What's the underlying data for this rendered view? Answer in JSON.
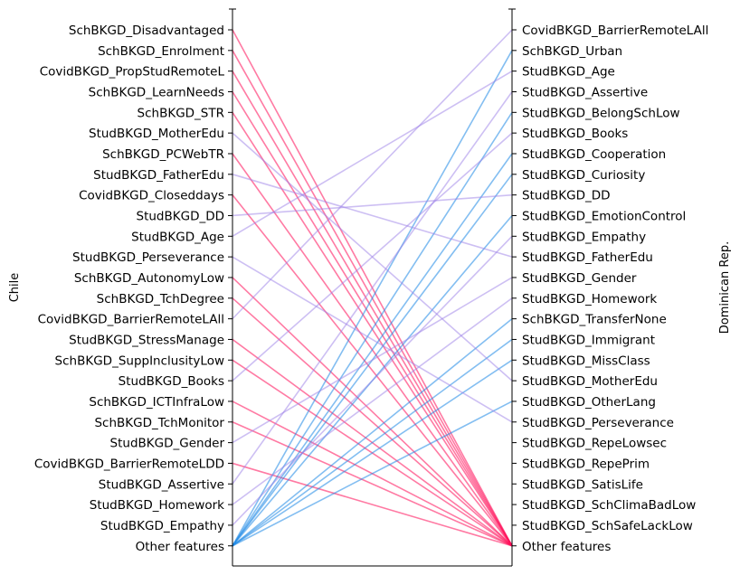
{
  "chart_data": {
    "type": "line",
    "left_axis_title": "Chile",
    "right_axis_title": "Dominican Rep.",
    "left_labels": [
      "SchBKGD_Disadvantaged",
      "SchBKGD_Enrolment",
      "CovidBKGD_PropStudRemoteL",
      "SchBKGD_LearnNeeds",
      "SchBKGD_STR",
      "StudBKGD_MotherEdu",
      "SchBKGD_PCWebTR",
      "StudBKGD_FatherEdu",
      "CovidBKGD_Closeddays",
      "StudBKGD_DD",
      "StudBKGD_Age",
      "StudBKGD_Perseverance",
      "SchBKGD_AutonomyLow",
      "SchBKGD_TchDegree",
      "CovidBKGD_BarrierRemoteLAll",
      "StudBKGD_StressManage",
      "SchBKGD_SuppInclusityLow",
      "StudBKGD_Books",
      "SchBKGD_ICTInfraLow",
      "SchBKGD_TchMonitor",
      "StudBKGD_Gender",
      "CovidBKGD_BarrierRemoteLDD",
      "StudBKGD_Assertive",
      "StudBKGD_Homework",
      "StudBKGD_Empathy",
      "Other features"
    ],
    "right_labels": [
      "CovidBKGD_BarrierRemoteLAll",
      "SchBKGD_Urban",
      "StudBKGD_Age",
      "StudBKGD_Assertive",
      "StudBKGD_BelongSchLow",
      "StudBKGD_Books",
      "StudBKGD_Cooperation",
      "StudBKGD_Curiosity",
      "StudBKGD_DD",
      "StudBKGD_EmotionControl",
      "StudBKGD_Empathy",
      "StudBKGD_FatherEdu",
      "StudBKGD_Gender",
      "StudBKGD_Homework",
      "SchBKGD_TransferNone",
      "StudBKGD_Immigrant",
      "StudBKGD_MissClass",
      "StudBKGD_MotherEdu",
      "StudBKGD_OtherLang",
      "StudBKGD_Perseverance",
      "StudBKGD_RepeLowsec",
      "StudBKGD_RepePrim",
      "StudBKGD_SatisLife",
      "StudBKGD_SchClimaBadLow",
      "StudBKGD_SchSafeLackLow",
      "Other features"
    ],
    "series": [
      {
        "group": "left_only",
        "links": [
          [
            0,
            25
          ],
          [
            1,
            25
          ],
          [
            2,
            25
          ],
          [
            3,
            25
          ],
          [
            4,
            25
          ],
          [
            6,
            25
          ],
          [
            8,
            25
          ],
          [
            12,
            25
          ],
          [
            13,
            25
          ],
          [
            15,
            25
          ],
          [
            16,
            25
          ],
          [
            18,
            25
          ],
          [
            19,
            25
          ],
          [
            21,
            25
          ]
        ]
      },
      {
        "group": "right_only",
        "links": [
          [
            25,
            1
          ],
          [
            25,
            4
          ],
          [
            25,
            6
          ],
          [
            25,
            7
          ],
          [
            25,
            9
          ],
          [
            25,
            14
          ],
          [
            25,
            15
          ],
          [
            25,
            16
          ],
          [
            25,
            18
          ]
        ]
      },
      {
        "group": "shared",
        "links": [
          [
            5,
            17
          ],
          [
            7,
            11
          ],
          [
            9,
            8
          ],
          [
            10,
            2
          ],
          [
            11,
            19
          ],
          [
            14,
            0
          ],
          [
            17,
            5
          ],
          [
            20,
            12
          ],
          [
            22,
            3
          ],
          [
            23,
            13
          ],
          [
            24,
            10
          ]
        ]
      }
    ],
    "colors": {
      "left_only": "#ff0d57",
      "right_only": "#1e88e5",
      "shared": "#9b7fe8"
    },
    "grid": false
  }
}
